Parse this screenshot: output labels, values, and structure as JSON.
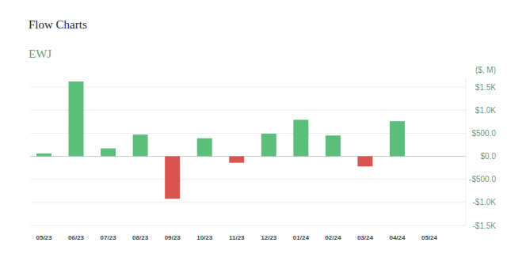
{
  "chart_data": {
    "type": "bar",
    "title": "Flow Charts",
    "subtitle": "EWJ",
    "y_label": "($, M)",
    "categories": [
      "05/23",
      "06/23",
      "07/23",
      "08/23",
      "09/23",
      "10/23",
      "11/23",
      "12/23",
      "01/24",
      "02/24",
      "03/24",
      "04/24",
      "05/24"
    ],
    "values": [
      60,
      1620,
      170,
      470,
      -920,
      390,
      -140,
      490,
      790,
      450,
      -220,
      760,
      null
    ],
    "colors": [
      "#5bbf7b",
      "#5bbf7b",
      "#5bbf7b",
      "#5bbf7b",
      "#d9534f",
      "#5bbf7b",
      "#d9534f",
      "#5bbf7b",
      "#5bbf7b",
      "#5bbf7b",
      "#d9534f",
      "#5bbf7b",
      "#5bbf7b"
    ],
    "ylim": [
      -1500,
      1700
    ],
    "yticks": [
      {
        "value": 1500,
        "label": "$1.5K"
      },
      {
        "value": 1000,
        "label": "$1.0K"
      },
      {
        "value": 500,
        "label": "$500.0"
      },
      {
        "value": 0,
        "label": "$0.0"
      },
      {
        "value": -500,
        "label": "-$500.0"
      },
      {
        "value": -1000,
        "label": "-$1.0K"
      },
      {
        "value": -1500,
        "label": "-$1.5K"
      }
    ],
    "grid": true
  }
}
